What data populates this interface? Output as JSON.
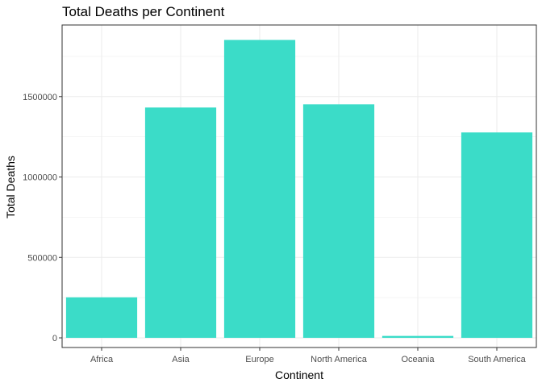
{
  "chart_data": {
    "type": "bar",
    "title": "Total Deaths per Continent",
    "xlabel": "Continent",
    "ylabel": "Total Deaths",
    "categories": [
      "Africa",
      "Asia",
      "Europe",
      "North America",
      "Oceania",
      "South America"
    ],
    "values": [
      252000,
      1432000,
      1852000,
      1452000,
      12000,
      1277000
    ],
    "ylim": [
      -60000,
      1945000
    ],
    "yticks": [
      0,
      500000,
      1000000,
      1500000
    ],
    "ytick_labels": [
      "0",
      "500000",
      "1000000",
      "1500000"
    ],
    "grid": true,
    "legend": "none",
    "bar_color": "#3BDCC8",
    "panel_border_color": "#333333",
    "grid_color": "#EBEBEB"
  }
}
